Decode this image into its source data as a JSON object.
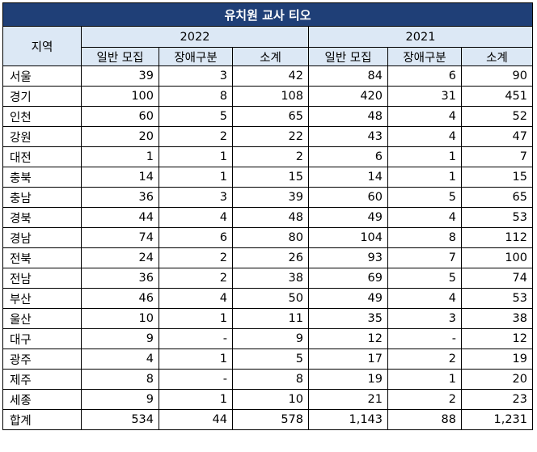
{
  "title": "유치원 교사 티오",
  "header": {
    "region": "지역",
    "year_a": "2022",
    "year_b": "2021",
    "sub": [
      "일반 모집",
      "장애구분",
      "소계",
      "일반 모집",
      "장애구분",
      "소계"
    ]
  },
  "rows": [
    {
      "region": "서울",
      "c": [
        "39",
        "3",
        "42",
        "84",
        "6",
        "90"
      ]
    },
    {
      "region": "경기",
      "c": [
        "100",
        "8",
        "108",
        "420",
        "31",
        "451"
      ]
    },
    {
      "region": "인천",
      "c": [
        "60",
        "5",
        "65",
        "48",
        "4",
        "52"
      ]
    },
    {
      "region": "강원",
      "c": [
        "20",
        "2",
        "22",
        "43",
        "4",
        "47"
      ]
    },
    {
      "region": "대전",
      "c": [
        "1",
        "1",
        "2",
        "6",
        "1",
        "7"
      ]
    },
    {
      "region": "충북",
      "c": [
        "14",
        "1",
        "15",
        "14",
        "1",
        "15"
      ]
    },
    {
      "region": "충남",
      "c": [
        "36",
        "3",
        "39",
        "60",
        "5",
        "65"
      ]
    },
    {
      "region": "경북",
      "c": [
        "44",
        "4",
        "48",
        "49",
        "4",
        "53"
      ]
    },
    {
      "region": "경남",
      "c": [
        "74",
        "6",
        "80",
        "104",
        "8",
        "112"
      ]
    },
    {
      "region": "전북",
      "c": [
        "24",
        "2",
        "26",
        "93",
        "7",
        "100"
      ]
    },
    {
      "region": "전남",
      "c": [
        "36",
        "2",
        "38",
        "69",
        "5",
        "74"
      ]
    },
    {
      "region": "부산",
      "c": [
        "46",
        "4",
        "50",
        "49",
        "4",
        "53"
      ]
    },
    {
      "region": "울산",
      "c": [
        "10",
        "1",
        "11",
        "35",
        "3",
        "38"
      ]
    },
    {
      "region": "대구",
      "c": [
        "9",
        "-",
        "9",
        "12",
        "-",
        "12"
      ]
    },
    {
      "region": "광주",
      "c": [
        "4",
        "1",
        "5",
        "17",
        "2",
        "19"
      ]
    },
    {
      "region": "제주",
      "c": [
        "8",
        "-",
        "8",
        "19",
        "1",
        "20"
      ]
    },
    {
      "region": "세종",
      "c": [
        "9",
        "1",
        "10",
        "21",
        "2",
        "23"
      ]
    },
    {
      "region": "합계",
      "c": [
        "534",
        "44",
        "578",
        "1,143",
        "88",
        "1,231"
      ]
    }
  ]
}
